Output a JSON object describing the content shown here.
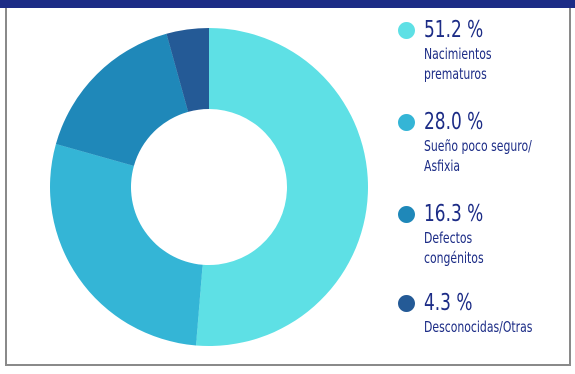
{
  "chart_data": {
    "type": "pie",
    "donut": true,
    "categories": [
      "Nacimientos prematuros",
      "Sueño poco seguro/ Asfixia",
      "Defectos congénitos",
      "Desconocidas/Otras"
    ],
    "values": [
      51.2,
      28.0,
      16.3,
      4.3
    ],
    "colors": [
      "#5ee0e5",
      "#34b5d6",
      "#1f88b9",
      "#245a96"
    ],
    "legend_placement": "right",
    "legend": [
      {
        "pct": "51.2 %",
        "line1": "Nacimientos",
        "line2": "prematuros",
        "color": "#5ee0e5"
      },
      {
        "pct": "28.0 %",
        "line1": "Sueño poco seguro/",
        "line2": "Asfixia",
        "color": "#34b5d6"
      },
      {
        "pct": "16.3 %",
        "line1": "Defectos",
        "line2": "congénitos",
        "color": "#1f88b9"
      },
      {
        "pct": "4.3 %",
        "line1": "Desconocidas/Otras",
        "line2": "",
        "color": "#245a96"
      }
    ]
  },
  "colors": {
    "accent_bar": "#1c2c86",
    "text": "#1c2c86",
    "frame": "#8a8a8a"
  }
}
